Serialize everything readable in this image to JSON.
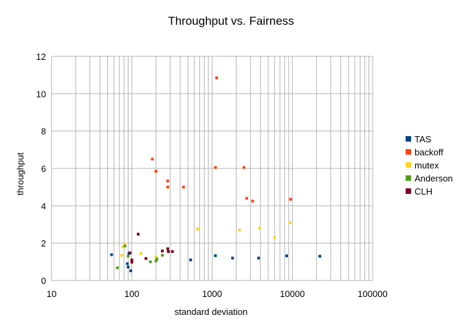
{
  "chart_data": {
    "type": "scatter",
    "title": "Throughput vs. Fairness",
    "xlabel": "standard deviation",
    "ylabel": "throughput",
    "xscale": "log",
    "xlim": [
      10,
      100000
    ],
    "ylim": [
      0,
      12
    ],
    "xticks": [
      10,
      100,
      1000,
      10000,
      100000
    ],
    "xtick_labels": [
      "10",
      "100",
      "1000",
      "10000",
      "100000"
    ],
    "yticks": [
      0,
      2,
      4,
      6,
      8,
      10,
      12
    ],
    "ytick_labels": [
      "0",
      "2",
      "4",
      "6",
      "8",
      "10",
      "12"
    ],
    "grid": true,
    "legend_position": "right",
    "series": [
      {
        "name": "TAS",
        "color": "#004586",
        "points": [
          [
            56,
            1.38
          ],
          [
            88,
            0.9
          ],
          [
            90,
            0.72
          ],
          [
            97,
            0.52
          ],
          [
            92,
            1.45
          ],
          [
            540,
            1.1
          ],
          [
            1100,
            1.33
          ],
          [
            1800,
            1.2
          ],
          [
            3800,
            1.2
          ],
          [
            8500,
            1.32
          ],
          [
            22000,
            1.3
          ]
        ]
      },
      {
        "name": "backoff",
        "color": "#ff420e",
        "points": [
          [
            180,
            6.5
          ],
          [
            200,
            5.85
          ],
          [
            280,
            5.33
          ],
          [
            280,
            5.0
          ],
          [
            440,
            5.0
          ],
          [
            1100,
            6.05
          ],
          [
            1140,
            10.85
          ],
          [
            2500,
            6.05
          ],
          [
            2700,
            4.4
          ],
          [
            3200,
            4.25
          ],
          [
            9500,
            4.35
          ]
        ]
      },
      {
        "name": "mutex",
        "color": "#ffd320",
        "points": [
          [
            75,
            1.35
          ],
          [
            78,
            1.8
          ],
          [
            82,
            1.95
          ],
          [
            130,
            1.45
          ],
          [
            200,
            1.25
          ],
          [
            660,
            2.75
          ],
          [
            2200,
            2.7
          ],
          [
            3900,
            2.8
          ],
          [
            6000,
            2.3
          ],
          [
            9300,
            3.1
          ]
        ]
      },
      {
        "name": "Anderson",
        "color": "#579d1c",
        "points": [
          [
            66,
            0.68
          ],
          [
            82,
            1.85
          ],
          [
            90,
            1.3
          ],
          [
            170,
            1.0
          ],
          [
            200,
            1.05
          ],
          [
            205,
            1.15
          ],
          [
            240,
            1.35
          ]
        ]
      },
      {
        "name": "CLH",
        "color": "#7e0021",
        "points": [
          [
            95,
            1.48
          ],
          [
            100,
            1.1
          ],
          [
            100,
            0.98
          ],
          [
            120,
            2.48
          ],
          [
            150,
            1.18
          ],
          [
            240,
            1.58
          ],
          [
            280,
            1.7
          ],
          [
            285,
            1.55
          ],
          [
            320,
            1.55
          ]
        ]
      }
    ]
  }
}
